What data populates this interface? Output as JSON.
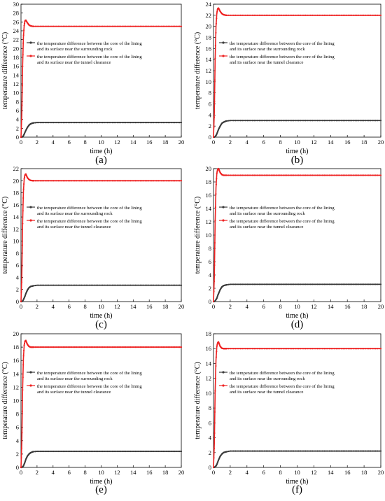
{
  "colors": {
    "series_surrounding_rock": "#3a3a3a",
    "series_tunnel_clearance": "#ee2222",
    "axis": "#000000"
  },
  "legend_position": "upper-middle",
  "chart_data": [
    {
      "type": "line",
      "panel_label": "(a)",
      "xlabel": "time (h)",
      "ylabel": "temperature difference (°C)",
      "xlim": [
        0,
        20
      ],
      "ylim": [
        0,
        30
      ],
      "xticks": [
        "0",
        "2",
        "4",
        "6",
        "8",
        "10",
        "12",
        "14",
        "16",
        "18",
        "20"
      ],
      "yticks": [
        "0",
        "2",
        "4",
        "6",
        "8",
        "10",
        "12",
        "14",
        "16",
        "18",
        "20",
        "22",
        "24",
        "26",
        "28",
        "30"
      ],
      "grid": false,
      "series": [
        {
          "name": "the temperature difference between the core of the lining and its surface near the surrounding rock",
          "color_key": "series_surrounding_rock",
          "x": [
            0,
            0.1,
            0.2,
            0.3,
            0.4,
            0.5,
            0.6,
            0.8,
            1.0,
            1.2,
            1.5,
            2.0,
            3.0,
            5.0,
            10.0,
            20.0
          ],
          "y": [
            0,
            0,
            0.1,
            0.3,
            0.7,
            1.1,
            1.5,
            2.2,
            2.7,
            3.0,
            3.2,
            3.3,
            3.3,
            3.3,
            3.3,
            3.3
          ]
        },
        {
          "name": "the temperature difference between the core of the lining and its surface near the tunnel clearance",
          "color_key": "series_tunnel_clearance",
          "x": [
            0,
            0.1,
            0.2,
            0.3,
            0.4,
            0.5,
            0.6,
            0.7,
            0.8,
            1.0,
            1.2,
            1.5,
            2.0,
            3.0,
            5.0,
            10.0,
            20.0
          ],
          "y": [
            0,
            5,
            16,
            22.5,
            25.2,
            26.3,
            26.4,
            26.1,
            25.8,
            25.3,
            25.1,
            25.0,
            25.0,
            25.0,
            25.0,
            25.0,
            25.0
          ]
        }
      ]
    },
    {
      "type": "line",
      "panel_label": "(b)",
      "xlabel": "time (h)",
      "ylabel": "temperature difference (°C)",
      "xlim": [
        0,
        20
      ],
      "ylim": [
        0,
        24
      ],
      "xticks": [
        "0",
        "2",
        "4",
        "6",
        "8",
        "10",
        "12",
        "14",
        "16",
        "18",
        "20"
      ],
      "yticks": [
        "0",
        "2",
        "4",
        "6",
        "8",
        "10",
        "12",
        "14",
        "16",
        "18",
        "20",
        "22",
        "24"
      ],
      "grid": false,
      "series": [
        {
          "name": "the temperature difference between the core of the lining and its surface near the surrounding rock",
          "color_key": "series_surrounding_rock",
          "x": [
            0,
            0.1,
            0.2,
            0.3,
            0.4,
            0.5,
            0.6,
            0.8,
            1.0,
            1.2,
            1.5,
            2.0,
            3.0,
            5.0,
            10.0,
            20.0
          ],
          "y": [
            0,
            0,
            0.1,
            0.3,
            0.6,
            1.0,
            1.4,
            2.0,
            2.5,
            2.7,
            2.9,
            3.0,
            3.0,
            3.0,
            3.0,
            3.0
          ]
        },
        {
          "name": "the temperature difference between the core of the lining and its surface near the tunnel clearance",
          "color_key": "series_tunnel_clearance",
          "x": [
            0,
            0.1,
            0.2,
            0.3,
            0.4,
            0.5,
            0.6,
            0.7,
            0.8,
            1.0,
            1.2,
            1.5,
            2.0,
            3.0,
            5.0,
            10.0,
            20.0
          ],
          "y": [
            0,
            4.5,
            14.2,
            20,
            22.4,
            23.2,
            23.3,
            23.0,
            22.7,
            22.3,
            22.1,
            22.0,
            22.0,
            22.0,
            22.0,
            22.0,
            22.0
          ]
        }
      ]
    },
    {
      "type": "line",
      "panel_label": "(c)",
      "xlabel": "time (h)",
      "ylabel": "temperature difference (°C)",
      "xlim": [
        0,
        20
      ],
      "ylim": [
        0,
        22
      ],
      "xticks": [
        "0",
        "2",
        "4",
        "6",
        "8",
        "10",
        "12",
        "14",
        "16",
        "18",
        "20"
      ],
      "yticks": [
        "0",
        "2",
        "4",
        "6",
        "8",
        "10",
        "12",
        "14",
        "16",
        "18",
        "20",
        "22"
      ],
      "grid": false,
      "series": [
        {
          "name": "the temperature difference between the core of the lining and its surface near the surrounding rock",
          "color_key": "series_surrounding_rock",
          "x": [
            0,
            0.1,
            0.2,
            0.3,
            0.4,
            0.5,
            0.6,
            0.8,
            1.0,
            1.2,
            1.5,
            2.0,
            3.0,
            5.0,
            10.0,
            20.0
          ],
          "y": [
            0,
            0,
            0.1,
            0.3,
            0.6,
            0.9,
            1.3,
            1.9,
            2.3,
            2.5,
            2.6,
            2.7,
            2.7,
            2.7,
            2.7,
            2.7
          ]
        },
        {
          "name": "the temperature difference between the core of the lining and its surface near the tunnel clearance",
          "color_key": "series_tunnel_clearance",
          "x": [
            0,
            0.1,
            0.2,
            0.3,
            0.4,
            0.5,
            0.6,
            0.7,
            0.8,
            1.0,
            1.2,
            1.5,
            2.0,
            3.0,
            5.0,
            10.0,
            20.0
          ],
          "y": [
            0,
            4,
            12.9,
            18.2,
            20.3,
            21.0,
            21.1,
            20.8,
            20.5,
            20.2,
            20.05,
            20.0,
            20.0,
            20.0,
            20.0,
            20.0,
            20.0
          ]
        }
      ]
    },
    {
      "type": "line",
      "panel_label": "(d)",
      "xlabel": "time (h)",
      "ylabel": "temperature difference (°C)",
      "xlim": [
        0,
        20
      ],
      "ylim": [
        0,
        20
      ],
      "xticks": [
        "0",
        "2",
        "4",
        "6",
        "8",
        "10",
        "12",
        "14",
        "16",
        "18",
        "20"
      ],
      "yticks": [
        "0",
        "2",
        "4",
        "6",
        "8",
        "10",
        "12",
        "14",
        "16",
        "18",
        "20"
      ],
      "grid": false,
      "series": [
        {
          "name": "the temperature difference between the core of the lining and its surface near the surrounding rock",
          "color_key": "series_surrounding_rock",
          "x": [
            0,
            0.1,
            0.2,
            0.3,
            0.4,
            0.5,
            0.6,
            0.8,
            1.0,
            1.2,
            1.5,
            2.0,
            3.0,
            5.0,
            10.0,
            20.0
          ],
          "y": [
            0,
            0,
            0.1,
            0.3,
            0.5,
            0.9,
            1.2,
            1.8,
            2.2,
            2.4,
            2.5,
            2.6,
            2.6,
            2.6,
            2.6,
            2.6
          ]
        },
        {
          "name": "the temperature difference between the core of the lining and its surface near the tunnel clearance",
          "color_key": "series_tunnel_clearance",
          "x": [
            0,
            0.1,
            0.2,
            0.3,
            0.4,
            0.5,
            0.6,
            0.7,
            0.8,
            1.0,
            1.2,
            1.5,
            2.0,
            3.0,
            5.0,
            10.0,
            20.0
          ],
          "y": [
            0,
            3.8,
            12.2,
            17.2,
            19.3,
            19.9,
            20.0,
            19.7,
            19.4,
            19.1,
            19.0,
            19.0,
            19.0,
            19.0,
            19.0,
            19.0,
            19.0
          ]
        }
      ]
    },
    {
      "type": "line",
      "panel_label": "(e)",
      "xlabel": "time (h)",
      "ylabel": "temperature difference (°C)",
      "xlim": [
        0,
        20
      ],
      "ylim": [
        0,
        20
      ],
      "xticks": [
        "0",
        "2",
        "4",
        "6",
        "8",
        "10",
        "12",
        "14",
        "16",
        "18",
        "20"
      ],
      "yticks": [
        "0",
        "2",
        "4",
        "6",
        "8",
        "10",
        "12",
        "14",
        "16",
        "18",
        "20"
      ],
      "grid": false,
      "series": [
        {
          "name": "the temperature difference between the core of the lining and its surface near the surrounding rock",
          "color_key": "series_surrounding_rock",
          "x": [
            0,
            0.1,
            0.2,
            0.3,
            0.4,
            0.5,
            0.6,
            0.8,
            1.0,
            1.2,
            1.5,
            2.0,
            3.0,
            5.0,
            10.0,
            20.0
          ],
          "y": [
            0,
            0,
            0.1,
            0.2,
            0.5,
            0.8,
            1.2,
            1.7,
            2.0,
            2.2,
            2.35,
            2.4,
            2.4,
            2.4,
            2.4,
            2.4
          ]
        },
        {
          "name": "the temperature difference between the core of the lining and its surface near the tunnel clearance",
          "color_key": "series_tunnel_clearance",
          "x": [
            0,
            0.1,
            0.2,
            0.3,
            0.4,
            0.5,
            0.6,
            0.7,
            0.8,
            1.0,
            1.2,
            1.5,
            2.0,
            3.0,
            5.0,
            10.0,
            20.0
          ],
          "y": [
            0,
            3.6,
            11.6,
            16.3,
            18.3,
            18.9,
            19.0,
            18.7,
            18.4,
            18.1,
            18.0,
            18.0,
            18.0,
            18.0,
            18.0,
            18.0,
            18.0
          ]
        }
      ]
    },
    {
      "type": "line",
      "panel_label": "(f)",
      "xlabel": "time (h)",
      "ylabel": "temperature difference (°C)",
      "xlim": [
        0,
        20
      ],
      "ylim": [
        0,
        18
      ],
      "xticks": [
        "0",
        "2",
        "4",
        "6",
        "8",
        "10",
        "12",
        "14",
        "16",
        "18",
        "20"
      ],
      "yticks": [
        "0",
        "2",
        "4",
        "6",
        "8",
        "10",
        "12",
        "14",
        "16",
        "18"
      ],
      "grid": false,
      "series": [
        {
          "name": "the temperature difference between the core of the lining and its surface near the surrounding rock",
          "color_key": "series_surrounding_rock",
          "x": [
            0,
            0.1,
            0.2,
            0.3,
            0.4,
            0.5,
            0.6,
            0.8,
            1.0,
            1.2,
            1.5,
            2.0,
            3.0,
            5.0,
            10.0,
            20.0
          ],
          "y": [
            0,
            0,
            0.1,
            0.2,
            0.4,
            0.7,
            1.0,
            1.5,
            1.8,
            2.0,
            2.1,
            2.2,
            2.2,
            2.2,
            2.2,
            2.2
          ]
        },
        {
          "name": "the temperature difference between the core of the lining and its surface near the tunnel clearance",
          "color_key": "series_tunnel_clearance",
          "x": [
            0,
            0.1,
            0.2,
            0.3,
            0.4,
            0.5,
            0.6,
            0.7,
            0.8,
            1.0,
            1.2,
            1.5,
            2.0,
            3.0,
            5.0,
            10.0,
            20.0
          ],
          "y": [
            0,
            3.2,
            10.3,
            14.5,
            16.3,
            16.8,
            16.9,
            16.6,
            16.3,
            16.05,
            16.0,
            16.0,
            16.0,
            16.0,
            16.0,
            16.0,
            16.0
          ]
        }
      ]
    }
  ]
}
